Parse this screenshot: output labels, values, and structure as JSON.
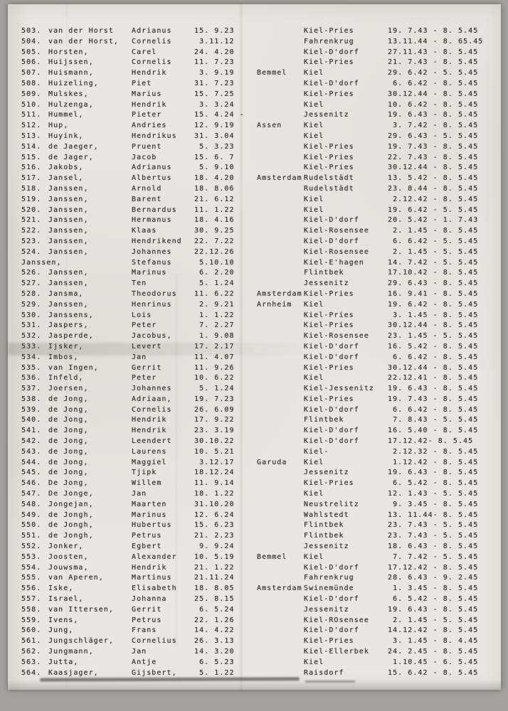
{
  "register": {
    "columns": [
      "entry_number",
      "surname",
      "first_name",
      "birth_date",
      "birth_place",
      "location",
      "period"
    ],
    "rows": [
      {
        "num": "503.",
        "surname": "van der Horst",
        "first": "Adrianus",
        "dob": "15. 9.23",
        "origin": "",
        "place": "Kiel-Pries",
        "period": "19. 7.43 - 8. 5.45"
      },
      {
        "num": "504.",
        "surname": "van der Horst,",
        "first": "Cornelis",
        "dob": " 3.11.12",
        "origin": "",
        "place": "Fahrenkrug",
        "period": "13.11.44 - 8. 65.45"
      },
      {
        "num": "505.",
        "surname": "Horsten,",
        "first": "Carel",
        "dob": "24. 4.20",
        "origin": "",
        "place": "Kiel-D'dorf",
        "period": "27.11.43 - 8. 5.45"
      },
      {
        "num": "506.",
        "surname": "Huijssen,",
        "first": "Cornelis",
        "dob": "11. 7.23",
        "origin": "",
        "place": "Kiel-Pries",
        "period": "21. 7.43 - 8. 5.45"
      },
      {
        "num": "507.",
        "surname": "Huismann,",
        "first": "Hendrik",
        "dob": " 3. 9.19",
        "origin": "Bemmel",
        "place": "Kiel",
        "period": "29. 6.42 - 5. 5.45"
      },
      {
        "num": "508.",
        "surname": "Huizeling,",
        "first": "Piet",
        "dob": "31. 7.23",
        "origin": "",
        "place": "Kiel-D'dorf",
        "period": " 6. 6.42 - 8. 5.45"
      },
      {
        "num": "509.",
        "surname": "Mulskes,",
        "first": "Marius",
        "dob": "15. 7.25",
        "origin": "",
        "place": "Kiel-Pries",
        "period": "30.12.44 - 8. 5.45"
      },
      {
        "num": "510.",
        "surname": "Hulzenga,",
        "first": "Hendrik",
        "dob": " 3. 3.24",
        "origin": "",
        "place": "Kiel",
        "period": "10. 6.42 - 8. 5.45"
      },
      {
        "num": "511.",
        "surname": "Hummel,",
        "first": "Pieter",
        "dob": "15. 4.24 -",
        "origin": "",
        "place": "Jessenitz",
        "period": "19. 6.43 - 8. 5.45"
      },
      {
        "num": "512.",
        "surname": "Hup,",
        "first": "Andries",
        "dob": "12. 9.19",
        "origin": "Assen",
        "place": "Kiel",
        "period": " 3. 7.42 - 8. 5.45"
      },
      {
        "num": "513.",
        "surname": "Huyink,",
        "first": "Hendrikus",
        "dob": "31. 3.04",
        "origin": "",
        "place": "Kiel",
        "period": "29. 6.43 - 5. 5.45"
      },
      {
        "num": "514.",
        "surname": "de Jaeger,",
        "first": "Pruent",
        "dob": " 5. 3.23",
        "origin": "",
        "place": "Kiel-Pries",
        "period": "19. 7.43 - 8. 5.45"
      },
      {
        "num": "515.",
        "surname": "de Jager,",
        "first": "Jacob",
        "dob": "15. 6. 7",
        "origin": "",
        "place": "Kiel-Pries",
        "period": "22. 7.43 - 8. 5.45"
      },
      {
        "num": "516.",
        "surname": "Jakobs,",
        "first": "Adrianus",
        "dob": " 5. 9.10",
        "origin": "",
        "place": "Kiel-Pries",
        "period": "30.12.44 - 8. 5.45"
      },
      {
        "num": "517.",
        "surname": "Jansel,",
        "first": "Albertus",
        "dob": "18. 4.20",
        "origin": "Amsterdam",
        "place": "Rudelstädt",
        "period": "13. 5.42 - 8. 5.45"
      },
      {
        "num": "518.",
        "surname": "Janssen,",
        "first": "Arnold",
        "dob": "18. 8.06",
        "origin": "",
        "place": "Rudelstädt",
        "period": "23. 8.44 - 8. 5.45"
      },
      {
        "num": "519.",
        "surname": "Janssen,",
        "first": "Barent",
        "dob": "21. 6.12",
        "origin": "",
        "place": "Kiel",
        "period": " 2.12.42 - 8. 5.45"
      },
      {
        "num": "520.",
        "surname": "Janssen,",
        "first": "Bernardus",
        "dob": "11. 1.22",
        "origin": "",
        "place": "Kiel",
        "period": "19. 6.42 - 5. 5.45"
      },
      {
        "num": "521.",
        "surname": "Janssen,",
        "first": "Hermanus",
        "dob": "18. 4.16",
        "origin": "",
        "place": "Kiel-D'dorf",
        "period": "20. 5.42 - 1. 7.43"
      },
      {
        "num": "522.",
        "surname": "Janssen,",
        "first": "Klaas",
        "dob": "30. 9.25",
        "origin": "",
        "place": "Kiel-Rosensee",
        "period": " 2. 1.45 - 8. 5.45"
      },
      {
        "num": "523.",
        "surname": "Janssen,",
        "first": "Hendrikend",
        "dob": "22. 7.22",
        "origin": "",
        "place": "Kiel-D'dorf",
        "period": " 6. 6.42 - 5. 5.45"
      },
      {
        "num": "524.",
        "surname": "Janssen,",
        "first": "Johannes",
        "dob": "22.12.26",
        "origin": "",
        "place": "Kiel-Rosensee",
        "period": " 2. 1.45 - 5. 5.45"
      },
      {
        "num": "",
        "surname": "Janssen,",
        "first": "Stefanus",
        "dob": " 5.10.10",
        "origin": "",
        "place": "Kiel-E'hagen",
        "period": "14. 7.42 - 5. 5.45",
        "shifted": true
      },
      {
        "num": "526.",
        "surname": "Janssen,",
        "first": "Marinus",
        "dob": " 6. 2.20",
        "origin": "",
        "place": "Flintbek",
        "period": "17.10.42 - 8. 5.45"
      },
      {
        "num": "527.",
        "surname": "Janssen,",
        "first": "Ten",
        "dob": " 5. 1.24",
        "origin": "",
        "place": "Jessenitz",
        "period": "29. 6.43 - 8. 5.45"
      },
      {
        "num": "528.",
        "surname": "Jansma,",
        "first": "Theodorus",
        "dob": "11. 6.22",
        "origin": "Amsterdam",
        "place": "Kiel-Pries",
        "period": "16. 9.41 - 8. 5.45"
      },
      {
        "num": "529.",
        "surname": "Janssen,",
        "first": "Henrinus",
        "dob": " 2. 9.21",
        "origin": "Arnheim",
        "place": "Kiel",
        "period": "19. 6.42 - 8. 5.45"
      },
      {
        "num": "530.",
        "surname": "Janssens,",
        "first": "Lois",
        "dob": " 1. 1.22",
        "origin": "",
        "place": "Kiel-Pries",
        "period": " 3. 1.45 - 8. 5.45"
      },
      {
        "num": "531.",
        "surname": "Jaspers,",
        "first": "Peter",
        "dob": " 7. 2.27",
        "origin": "",
        "place": "Kiel-Pries",
        "period": "30.12.44 - 8. 5.45"
      },
      {
        "num": "532.",
        "surname": "Jasperde,",
        "first": "Jacobus,",
        "dob": " 1. 9.08",
        "origin": "",
        "place": "Kiel-Rosensee",
        "period": "23. 1.45 - 5. 5.45"
      },
      {
        "num": "533.",
        "surname": "Ijsker,",
        "first": "Levert",
        "dob": "17. 2.17",
        "origin": "",
        "place": "Kiel-D'dorf",
        "period": "16. 5.42 - 8. 5.45"
      },
      {
        "num": "534.",
        "surname": "Imbos,",
        "first": "Jan",
        "dob": "11. 4.07",
        "origin": "",
        "place": "Kiel-D'dorf",
        "period": " 6. 6.42 - 8. 5.45"
      },
      {
        "num": "535.",
        "surname": "van Ingen,",
        "first": "Gerrit",
        "dob": "11. 9.26",
        "origin": "",
        "place": "Kiel-Pries",
        "period": "30.12.44 - 8. 5.45"
      },
      {
        "num": "536.",
        "surname": "Infeld,",
        "first": "Peter",
        "dob": "10. 6.22",
        "origin": "",
        "place": "Kiel",
        "period": "22.12.41 - 8. 5.45"
      },
      {
        "num": "537.",
        "surname": "Joersen,",
        "first": "Johannes",
        "dob": " 5. 1.24",
        "origin": "",
        "place": "Kiel-Jessenitz",
        "period": "19. 6.43 - 8. 5.45"
      },
      {
        "num": "538.",
        "surname": "de Jong,",
        "first": "Adriaan,",
        "dob": "19. 7.23",
        "origin": "",
        "place": "Kiel-Pries",
        "period": "19. 7.43 - 8. 5.45"
      },
      {
        "num": "539.",
        "surname": "de Jong,",
        "first": "Cornelis",
        "dob": "26. 6.09",
        "origin": "",
        "place": "Kiel-D'dorf",
        "period": " 6. 6.42 - 8. 5.45"
      },
      {
        "num": "540.",
        "surname": "de Jong,",
        "first": "Hendrik",
        "dob": "17. 9.22",
        "origin": "",
        "place": "Flintbek",
        "period": " 7. 8.43 - 5. 5.45"
      },
      {
        "num": "541.",
        "surname": "de Jong,",
        "first": "Hendrik",
        "dob": "23. 3.19",
        "origin": "",
        "place": "Kiel-D'dorf",
        "period": "16. 5.40 - 8. 5.45"
      },
      {
        "num": "542.",
        "surname": "de Jong,",
        "first": "Leendert",
        "dob": "30.10.22",
        "origin": "",
        "place": "Kiel-D'dorf",
        "period": "17.12.42- 8. 5.45"
      },
      {
        "num": "543.",
        "surname": "de Jong,",
        "first": "Laurens",
        "dob": "10. 5.21",
        "origin": "",
        "place": "Kiel-",
        "period": " 2.12.32 - 8. 5.45"
      },
      {
        "num": "544.",
        "surname": "de Jong,",
        "first": "Maggiel",
        "dob": " 3.12.17",
        "origin": "Garuda",
        "place": "Kiel",
        "period": " 1.12.42 - 8. 5.45"
      },
      {
        "num": "545.",
        "surname": "de Jong,",
        "first": "Tjipk",
        "dob": "18.12.24",
        "origin": "",
        "place": "Jessenitz",
        "period": "19. 6.43 - 8. 5.45"
      },
      {
        "num": "546.",
        "surname": "De Jong,",
        "first": "Willem",
        "dob": "11. 9.14",
        "origin": "",
        "place": "Kiel-Pries",
        "period": " 6. 5.42 - 8. 5.45"
      },
      {
        "num": "547.",
        "surname": "De Jonge,",
        "first": "Jan",
        "dob": "18. 1.22",
        "origin": "",
        "place": "Kiel",
        "period": "12. 1.43 - 5. 5.45"
      },
      {
        "num": "548.",
        "surname": "Jongejan,",
        "first": "Maarten",
        "dob": "31.10.20",
        "origin": "",
        "place": "Neustrelitz",
        "period": " 9. 3.45 - 8. 5.45"
      },
      {
        "num": "549.",
        "surname": "de Jongh,",
        "first": "Marinus",
        "dob": "12. 6.24",
        "origin": "",
        "place": "Wahlstedt",
        "period": "13. 11.44- 8. 5.45"
      },
      {
        "num": "550.",
        "surname": "de Jongh,",
        "first": "Hubertus",
        "dob": "15. 6.23",
        "origin": "",
        "place": "Flintbek",
        "period": "23. 7.43 - 5. 5.45"
      },
      {
        "num": "551.",
        "surname": "de Jongh,",
        "first": "Petrus",
        "dob": "21. 2.23",
        "origin": "",
        "place": "Flintbek",
        "period": "23. 7.43 - 5. 5.45"
      },
      {
        "num": "552.",
        "surname": "Jonker,",
        "first": "Egbert",
        "dob": " 9. 9.24",
        "origin": "",
        "place": "Jessenitz",
        "period": "18. 6.43 - 8. 5.45"
      },
      {
        "num": "553.",
        "surname": "Joosten,",
        "first": "Alexander",
        "dob": "10. 5.19",
        "origin": "Bemmel",
        "place": "Kiel",
        "period": " 7. 7.42 - 5. 5.45"
      },
      {
        "num": "554.",
        "surname": "Jouwsma,",
        "first": "Hendrik",
        "dob": "21. 1.22",
        "origin": "",
        "place": "Kiel-D'dorf",
        "period": "17.12.42 - 8. 5.45"
      },
      {
        "num": "555.",
        "surname": "van Aperen,",
        "first": "Martinus",
        "dob": "21.11.24",
        "origin": "",
        "place": "Fahrenkrug",
        "period": "28. 6.43 - 9. 2.45"
      },
      {
        "num": "556.",
        "surname": "Iske,",
        "first": "Elisabeth",
        "dob": "18. 8.05",
        "origin": "Amsterdam",
        "place": "Swinemünde",
        "period": " 1. 3.45 - 8. 5.45"
      },
      {
        "num": "557.",
        "surname": "Israel,",
        "first": "Johanna",
        "dob": "25. 8.15",
        "origin": "",
        "place": "Kiel-D'dorf",
        "period": " 6. 5.42 - 8. 5.45"
      },
      {
        "num": "558.",
        "surname": "van Ittersen,",
        "first": "Gerrit",
        "dob": " 6. 5.24",
        "origin": "",
        "place": "Jessenitz",
        "period": "19. 6.43 - 8. 5.45"
      },
      {
        "num": "559.",
        "surname": "Ivens,",
        "first": "Petrus",
        "dob": "22. 1.26",
        "origin": "",
        "place": "Kiel-ROsensee",
        "period": " 2. 1.45 - 5. 5.45"
      },
      {
        "num": "560.",
        "surname": "Jung,",
        "first": "Frans",
        "dob": "14. 4.22",
        "origin": "",
        "place": "Kiel-D'dorf",
        "period": "14.12.42 - 8. 5.45"
      },
      {
        "num": "561.",
        "surname": "Jungschläger,",
        "first": "Cornelius",
        "dob": "26. 3.13",
        "origin": "",
        "place": "Kiel-Pries",
        "period": " 3. 1.45 - 8. 4.45"
      },
      {
        "num": "562.",
        "surname": "Jungmann,",
        "first": "Jan",
        "dob": "14. 3.20",
        "origin": "",
        "place": "Kiel-Ellerbek",
        "period": "24. 2.45 - 8. 5.45"
      },
      {
        "num": "563.",
        "surname": "Jutta,",
        "first": "Antje",
        "dob": " 6. 5.23",
        "origin": "",
        "place": "Kiel",
        "period": " 1.10.45 - 6. 5.45"
      },
      {
        "num": "564.",
        "surname": "Kaasjager,",
        "first": "Gijsbert,",
        "dob": " 5. 1.22",
        "origin": "",
        "place": "Raisdorf",
        "period": "15. 6.42 - 8. 5.45"
      }
    ]
  },
  "colors": {
    "paper": "#e9e7e1",
    "ink": "#38342e",
    "scanner_edge": "#a2a19c"
  }
}
